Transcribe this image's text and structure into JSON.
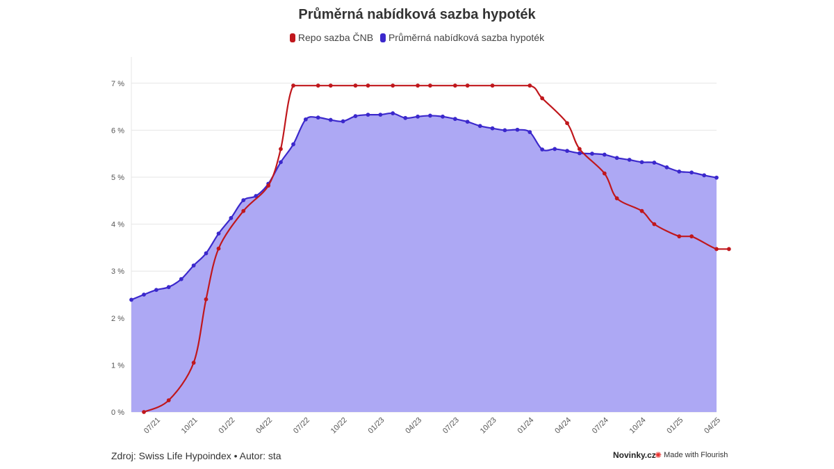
{
  "chart_data": {
    "type": "line",
    "title": "Průměrná nabídková sazba hypoték",
    "ylim": [
      0,
      7.8
    ],
    "y_ticks": [
      {
        "value": 0,
        "label": "0 %"
      },
      {
        "value": 1,
        "label": "1 %"
      },
      {
        "value": 2,
        "label": "2 %"
      },
      {
        "value": 3,
        "label": "3 %"
      },
      {
        "value": 4,
        "label": "4 %"
      },
      {
        "value": 5,
        "label": "5 %"
      },
      {
        "value": 6,
        "label": "6 %"
      },
      {
        "value": 7,
        "label": "7 %"
      }
    ],
    "x_ticks": [
      {
        "x": 2021.5,
        "label": "07/21"
      },
      {
        "x": 2021.75,
        "label": "10/21"
      },
      {
        "x": 2022.0,
        "label": "01/22"
      },
      {
        "x": 2022.25,
        "label": "04/22"
      },
      {
        "x": 2022.5,
        "label": "07/22"
      },
      {
        "x": 2022.75,
        "label": "10/22"
      },
      {
        "x": 2023.0,
        "label": "01/23"
      },
      {
        "x": 2023.25,
        "label": "04/23"
      },
      {
        "x": 2023.5,
        "label": "07/23"
      },
      {
        "x": 2023.75,
        "label": "10/23"
      },
      {
        "x": 2024.0,
        "label": "01/24"
      },
      {
        "x": 2024.25,
        "label": "04/24"
      },
      {
        "x": 2024.5,
        "label": "07/24"
      },
      {
        "x": 2024.75,
        "label": "10/24"
      },
      {
        "x": 2025.0,
        "label": "01/25"
      },
      {
        "x": 2025.25,
        "label": "04/25"
      }
    ],
    "grid": true,
    "legend_position": "top-center",
    "series": [
      {
        "name": "Repo sazba ČNB",
        "color": "#c0171c",
        "fill": false,
        "points": [
          [
            2021.417,
            0.0
          ],
          [
            2021.583,
            0.25
          ],
          [
            2021.75,
            1.05
          ],
          [
            2021.833,
            2.4
          ],
          [
            2021.917,
            3.48
          ],
          [
            2022.083,
            4.28
          ],
          [
            2022.25,
            4.82
          ],
          [
            2022.333,
            5.6
          ],
          [
            2022.417,
            6.95
          ],
          [
            2022.583,
            6.95
          ],
          [
            2022.667,
            6.95
          ],
          [
            2022.833,
            6.95
          ],
          [
            2022.917,
            6.95
          ],
          [
            2023.083,
            6.95
          ],
          [
            2023.25,
            6.95
          ],
          [
            2023.333,
            6.95
          ],
          [
            2023.5,
            6.95
          ],
          [
            2023.583,
            6.95
          ],
          [
            2023.75,
            6.95
          ],
          [
            2024.0,
            6.95
          ],
          [
            2024.083,
            6.68
          ],
          [
            2024.25,
            6.15
          ],
          [
            2024.333,
            5.6
          ],
          [
            2024.5,
            5.08
          ],
          [
            2024.583,
            4.55
          ],
          [
            2024.75,
            4.28
          ],
          [
            2024.833,
            4.0
          ],
          [
            2025.0,
            3.74
          ],
          [
            2025.083,
            3.74
          ],
          [
            2025.25,
            3.47
          ],
          [
            2025.333,
            3.47
          ]
        ]
      },
      {
        "name": "Průměrná nabídková sazba hypoték",
        "color": "#3b28cc",
        "fill": true,
        "fill_color": "#ada8f4",
        "points": [
          [
            2021.333,
            2.39
          ],
          [
            2021.417,
            2.5
          ],
          [
            2021.5,
            2.6
          ],
          [
            2021.583,
            2.66
          ],
          [
            2021.667,
            2.83
          ],
          [
            2021.75,
            3.12
          ],
          [
            2021.833,
            3.38
          ],
          [
            2021.917,
            3.8
          ],
          [
            2022.0,
            4.13
          ],
          [
            2022.083,
            4.51
          ],
          [
            2022.167,
            4.6
          ],
          [
            2022.25,
            4.86
          ],
          [
            2022.333,
            5.32
          ],
          [
            2022.417,
            5.7
          ],
          [
            2022.5,
            6.23
          ],
          [
            2022.583,
            6.27
          ],
          [
            2022.667,
            6.22
          ],
          [
            2022.75,
            6.19
          ],
          [
            2022.833,
            6.3
          ],
          [
            2022.917,
            6.33
          ],
          [
            2023.0,
            6.33
          ],
          [
            2023.083,
            6.36
          ],
          [
            2023.167,
            6.26
          ],
          [
            2023.25,
            6.29
          ],
          [
            2023.333,
            6.31
          ],
          [
            2023.417,
            6.29
          ],
          [
            2023.5,
            6.24
          ],
          [
            2023.583,
            6.18
          ],
          [
            2023.667,
            6.09
          ],
          [
            2023.75,
            6.04
          ],
          [
            2023.833,
            6.0
          ],
          [
            2023.917,
            6.01
          ],
          [
            2024.0,
            5.96
          ],
          [
            2024.083,
            5.59
          ],
          [
            2024.167,
            5.6
          ],
          [
            2024.25,
            5.56
          ],
          [
            2024.333,
            5.51
          ],
          [
            2024.417,
            5.5
          ],
          [
            2024.5,
            5.48
          ],
          [
            2024.583,
            5.41
          ],
          [
            2024.667,
            5.37
          ],
          [
            2024.75,
            5.32
          ],
          [
            2024.833,
            5.31
          ],
          [
            2024.917,
            5.21
          ],
          [
            2025.0,
            5.12
          ],
          [
            2025.083,
            5.1
          ],
          [
            2025.167,
            5.04
          ],
          [
            2025.25,
            4.99
          ]
        ]
      }
    ]
  },
  "footer": {
    "source_text": "Zdroj: Swiss Life Hypoindex • Autor: sta",
    "brand": "Novinky.cz",
    "flourish_text": "Made with Flourish",
    "flourish_icon": "✺"
  }
}
